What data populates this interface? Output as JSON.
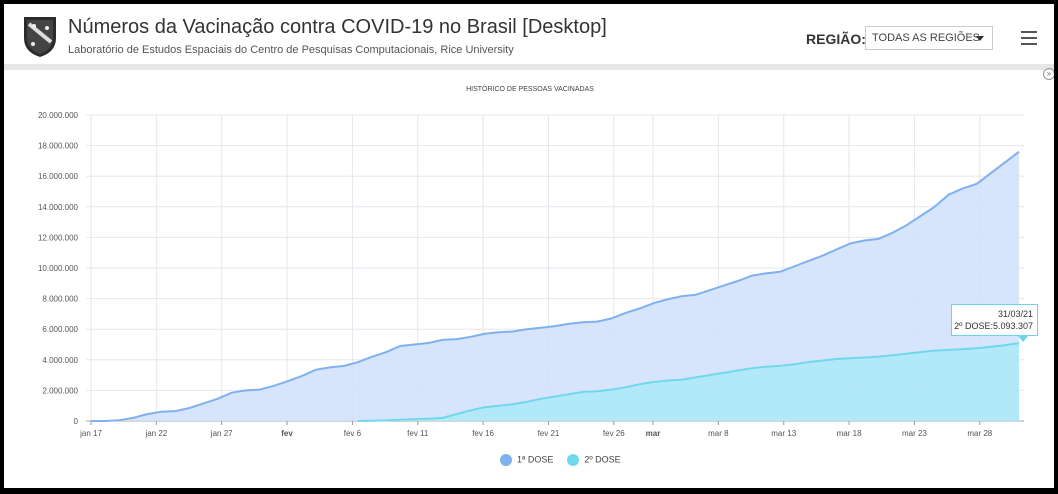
{
  "header": {
    "title": "Números da Vacinação contra COVID-19 no Brasil [Desktop]",
    "subtitle": "Laboratório de Estudos Espaciais do Centro de Pesquisas Computacionais, Rice University",
    "logo_icon": "university-shield-icon",
    "region_label": "REGIÃO:",
    "region_value": "TODAS AS REGIÕES",
    "menu_icon": "hamburger-menu-icon"
  },
  "tooltip": {
    "date": "31/03/21",
    "text": "2º DOSE:5.093.307"
  },
  "chart_data": {
    "type": "area",
    "title": "HISTÓRICO DE PESSOAS VACINADAS",
    "xlabel": "",
    "ylabel": "",
    "ylim": [
      0,
      20000000
    ],
    "yticks": [
      "0",
      "2.000.000",
      "4.000.000",
      "6.000.000",
      "8.000.000",
      "10.000.000",
      "12.000.000",
      "14.000.000",
      "16.000.000",
      "18.000.000",
      "20.000.000"
    ],
    "xticks": [
      "jan 17",
      "jan 22",
      "jan 27",
      "fev",
      "fev 6",
      "fev 11",
      "fev 16",
      "fev 21",
      "fev 26",
      "mar",
      "mar 8",
      "mar 13",
      "mar 18",
      "mar 23",
      "mar 28"
    ],
    "grid": true,
    "legend_position": "bottom-center",
    "series": [
      {
        "name": "1ª DOSE",
        "color": "#7fb1ee",
        "points": [
          [
            0,
            0
          ],
          [
            1,
            0
          ],
          [
            2,
            50000
          ],
          [
            3,
            200000
          ],
          [
            4,
            450000
          ],
          [
            5,
            600000
          ],
          [
            6,
            650000
          ],
          [
            7,
            850000
          ],
          [
            8,
            1150000
          ],
          [
            9,
            1450000
          ],
          [
            10,
            1850000
          ],
          [
            11,
            2000000
          ],
          [
            12,
            2050000
          ],
          [
            13,
            2300000
          ],
          [
            14,
            2600000
          ],
          [
            15,
            2950000
          ],
          [
            16,
            3350000
          ],
          [
            17,
            3500000
          ],
          [
            18,
            3600000
          ],
          [
            19,
            3850000
          ],
          [
            20,
            4200000
          ],
          [
            21,
            4500000
          ],
          [
            22,
            4900000
          ],
          [
            23,
            5000000
          ],
          [
            24,
            5100000
          ],
          [
            25,
            5300000
          ],
          [
            26,
            5350000
          ],
          [
            27,
            5500000
          ],
          [
            28,
            5700000
          ],
          [
            29,
            5800000
          ],
          [
            30,
            5850000
          ],
          [
            31,
            6000000
          ],
          [
            32,
            6100000
          ],
          [
            33,
            6200000
          ],
          [
            34,
            6350000
          ],
          [
            35,
            6450000
          ],
          [
            36,
            6500000
          ],
          [
            37,
            6700000
          ],
          [
            38,
            7050000
          ],
          [
            39,
            7350000
          ],
          [
            40,
            7700000
          ],
          [
            41,
            7950000
          ],
          [
            42,
            8150000
          ],
          [
            43,
            8250000
          ],
          [
            44,
            8550000
          ],
          [
            45,
            8850000
          ],
          [
            46,
            9150000
          ],
          [
            47,
            9500000
          ],
          [
            48,
            9650000
          ],
          [
            49,
            9750000
          ],
          [
            50,
            10100000
          ],
          [
            51,
            10450000
          ],
          [
            52,
            10800000
          ],
          [
            53,
            11200000
          ],
          [
            54,
            11600000
          ],
          [
            55,
            11800000
          ],
          [
            56,
            11900000
          ],
          [
            57,
            12300000
          ],
          [
            58,
            12800000
          ],
          [
            59,
            13400000
          ],
          [
            60,
            14000000
          ],
          [
            61,
            14800000
          ],
          [
            62,
            15200000
          ],
          [
            63,
            15500000
          ],
          [
            64,
            16200000
          ],
          [
            65,
            16900000
          ],
          [
            66,
            17600000
          ]
        ]
      },
      {
        "name": "2º DOSE",
        "color": "#6fd8ef",
        "points": [
          [
            19,
            0
          ],
          [
            20,
            20000
          ],
          [
            21,
            40000
          ],
          [
            22,
            80000
          ],
          [
            23,
            120000
          ],
          [
            24,
            150000
          ],
          [
            25,
            200000
          ],
          [
            26,
            450000
          ],
          [
            27,
            700000
          ],
          [
            28,
            900000
          ],
          [
            29,
            1000000
          ],
          [
            30,
            1100000
          ],
          [
            31,
            1250000
          ],
          [
            32,
            1450000
          ],
          [
            33,
            1600000
          ],
          [
            34,
            1750000
          ],
          [
            35,
            1900000
          ],
          [
            36,
            1950000
          ],
          [
            37,
            2050000
          ],
          [
            38,
            2200000
          ],
          [
            39,
            2400000
          ],
          [
            40,
            2550000
          ],
          [
            41,
            2650000
          ],
          [
            42,
            2700000
          ],
          [
            43,
            2850000
          ],
          [
            44,
            3000000
          ],
          [
            45,
            3150000
          ],
          [
            46,
            3300000
          ],
          [
            47,
            3450000
          ],
          [
            48,
            3550000
          ],
          [
            49,
            3600000
          ],
          [
            50,
            3700000
          ],
          [
            51,
            3850000
          ],
          [
            52,
            3950000
          ],
          [
            53,
            4050000
          ],
          [
            54,
            4100000
          ],
          [
            55,
            4150000
          ],
          [
            56,
            4200000
          ],
          [
            57,
            4300000
          ],
          [
            58,
            4400000
          ],
          [
            59,
            4500000
          ],
          [
            60,
            4600000
          ],
          [
            61,
            4650000
          ],
          [
            62,
            4700000
          ],
          [
            63,
            4750000
          ],
          [
            64,
            4850000
          ],
          [
            65,
            4950000
          ],
          [
            66,
            5093307
          ]
        ]
      }
    ]
  }
}
